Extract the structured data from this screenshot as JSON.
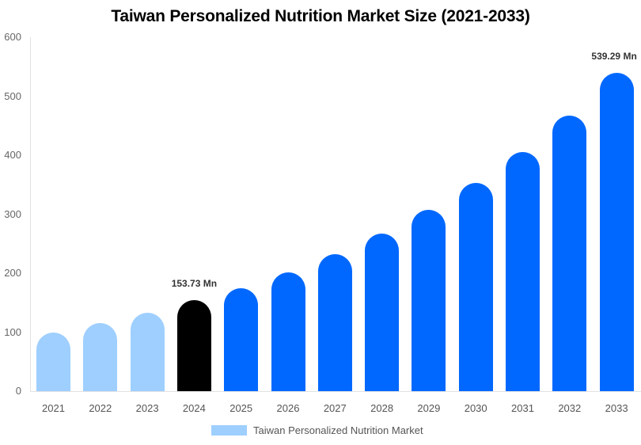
{
  "chart_data": {
    "type": "bar",
    "title": "Taiwan Personalized Nutrition Market Size (2021-2033)",
    "xlabel": "",
    "ylabel": "",
    "ylim": [
      0,
      600
    ],
    "yticks": [
      "0",
      "100",
      "200",
      "300",
      "400",
      "500",
      "600"
    ],
    "categories": [
      "2021",
      "2022",
      "2023",
      "2024",
      "2025",
      "2026",
      "2027",
      "2028",
      "2029",
      "2030",
      "2031",
      "2032",
      "2033"
    ],
    "series": [
      {
        "name": "Taiwan Personalized Nutrition Market",
        "values": [
          99,
          115,
          133,
          153.73,
          174,
          201,
          232,
          267,
          307,
          353,
          405,
          467,
          539.29
        ]
      }
    ],
    "annotations": [
      {
        "category": "2024",
        "text": "153.73 Mn"
      },
      {
        "category": "2033",
        "text": "539.29 Mn"
      }
    ],
    "bar_colors": {
      "historical": "#9ecfff",
      "base_year": "#000000",
      "forecast": "#0068ff"
    },
    "grid": false,
    "legend_position": "bottom"
  },
  "legend": {
    "label": "Taiwan Personalized Nutrition Market",
    "color": "#9ecfff"
  }
}
